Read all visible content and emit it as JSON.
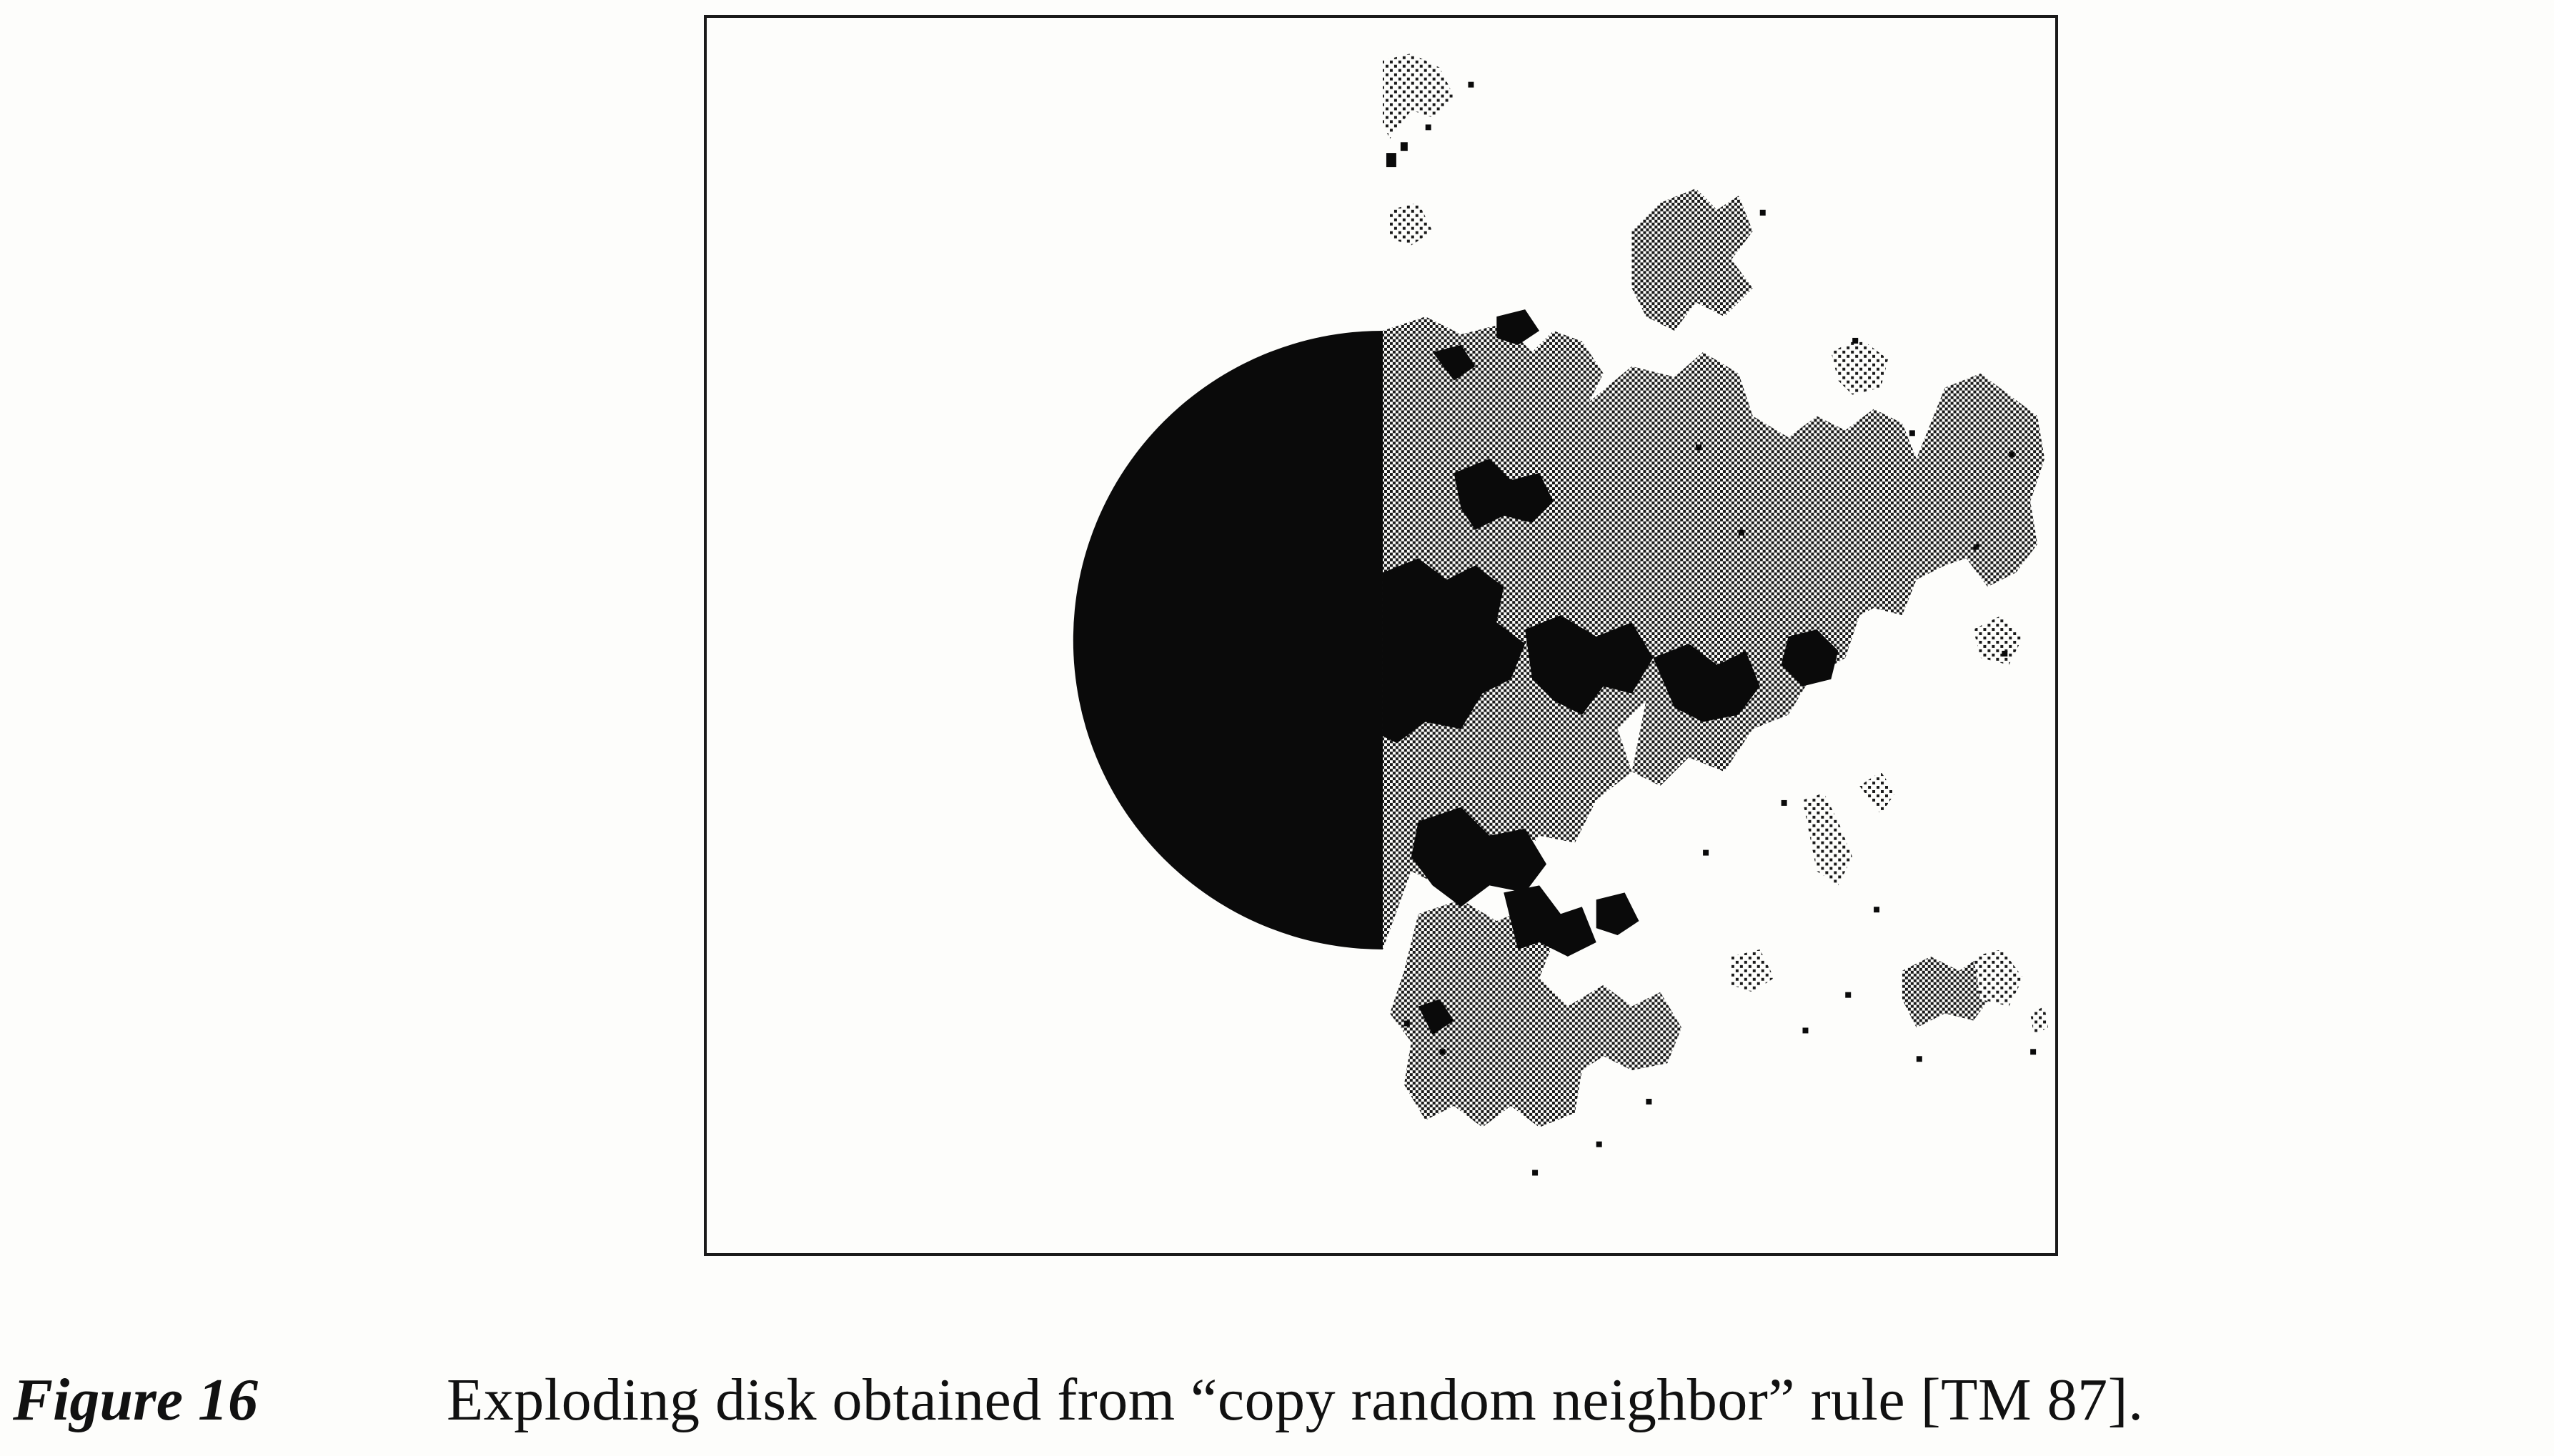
{
  "figure": {
    "label": "Figure 16",
    "caption": "Exploding disk obtained from “copy random neighbor” rule [TM 87].",
    "image_description_colors": {
      "ink": "#0a0a0a",
      "dither": "#555555",
      "paper": "#fdfdfb"
    }
  }
}
